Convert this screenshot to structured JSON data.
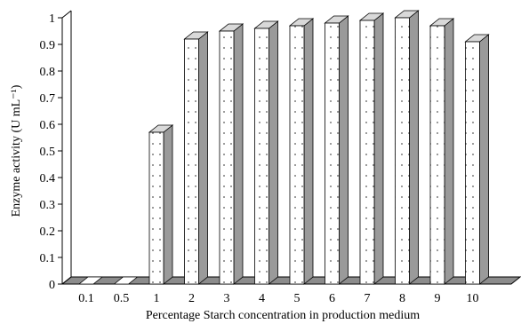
{
  "chart_data": {
    "type": "bar",
    "style": "3d-column",
    "categories": [
      "0.1",
      "0.5",
      "1",
      "2",
      "3",
      "4",
      "5",
      "6",
      "7",
      "8",
      "9",
      "10"
    ],
    "values": [
      0.0,
      0.0,
      0.57,
      0.92,
      0.95,
      0.96,
      0.97,
      0.98,
      0.99,
      1.0,
      0.97,
      0.91
    ],
    "xlabel": "Percentage Starch concentration in production medium",
    "ylabel": "Enzyme activity (U mL⁻¹)",
    "ylim": [
      0,
      1
    ],
    "yticks": [
      "0",
      "0.1",
      "0.2",
      "0.3",
      "0.4",
      "0.5",
      "0.6",
      "0.7",
      "0.8",
      "0.9",
      "1"
    ],
    "grid": false,
    "legend": "none",
    "colors": {
      "bar_face": "#ffffff",
      "bar_side": "#9a9a9a",
      "bar_top": "#d9d9d9",
      "floor": "#8c8c8c",
      "dots": "#555555"
    }
  }
}
